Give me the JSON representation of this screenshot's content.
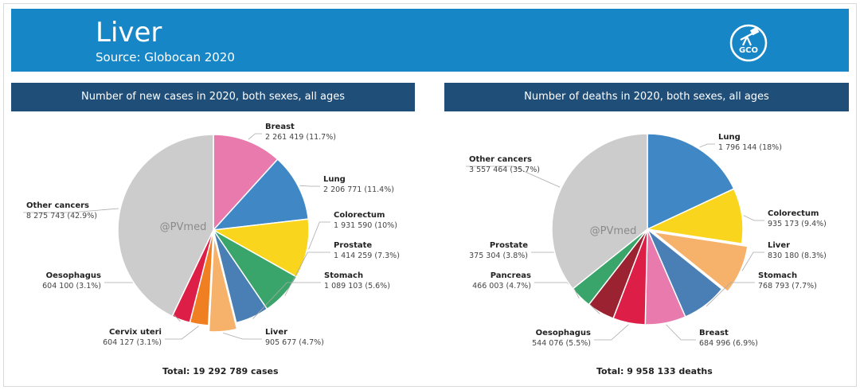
{
  "header": {
    "title": "Liver",
    "subtitle": "Source: Globocan 2020",
    "logo_text": "GCO",
    "logo_icon": "telescope-icon",
    "background_color": "#1686c6"
  },
  "watermark": "@PVmed",
  "chart_data": [
    {
      "type": "pie",
      "title": "Number of new cases in 2020, both sexes, all ages",
      "total_label": "Total: 19 292 789 cases",
      "highlight": "Liver",
      "slices": [
        {
          "label": "Breast",
          "value_text": "2 261 419 (11.7%)",
          "value": 2261419,
          "percent": 11.7,
          "color": "#e97aad"
        },
        {
          "label": "Lung",
          "value_text": "2 206 771 (11.4%)",
          "value": 2206771,
          "percent": 11.4,
          "color": "#3f88c5"
        },
        {
          "label": "Colorectum",
          "value_text": "1 931 590 (10%)",
          "value": 1931590,
          "percent": 10.0,
          "color": "#f9d61d"
        },
        {
          "label": "Prostate",
          "value_text": "1 414 259 (7.3%)",
          "value": 1414259,
          "percent": 7.3,
          "color": "#3aa56a"
        },
        {
          "label": "Stomach",
          "value_text": "1 089 103 (5.6%)",
          "value": 1089103,
          "percent": 5.6,
          "color": "#4a7fb5"
        },
        {
          "label": "Liver",
          "value_text": "905 677 (4.7%)",
          "value": 905677,
          "percent": 4.7,
          "color": "#f6b26b"
        },
        {
          "label": "Cervix uteri",
          "value_text": "604 127 (3.1%)",
          "value": 604127,
          "percent": 3.1,
          "color": "#f07f22"
        },
        {
          "label": "Oesophagus",
          "value_text": "604 100 (3.1%)",
          "value": 604100,
          "percent": 3.1,
          "color": "#dd1f47"
        },
        {
          "label": "Other cancers",
          "value_text": "8 275 743 (42.9%)",
          "value": 8275743,
          "percent": 42.9,
          "color": "#cccccc"
        }
      ]
    },
    {
      "type": "pie",
      "title": "Number of deaths in 2020, both sexes, all ages",
      "total_label": "Total: 9 958 133 deaths",
      "highlight": "Liver",
      "slices": [
        {
          "label": "Lung",
          "value_text": "1 796 144 (18%)",
          "value": 1796144,
          "percent": 18.0,
          "color": "#3f88c5"
        },
        {
          "label": "Colorectum",
          "value_text": "935 173 (9.4%)",
          "value": 935173,
          "percent": 9.4,
          "color": "#f9d61d"
        },
        {
          "label": "Liver",
          "value_text": "830 180 (8.3%)",
          "value": 830180,
          "percent": 8.3,
          "color": "#f6b26b"
        },
        {
          "label": "Stomach",
          "value_text": "768 793 (7.7%)",
          "value": 768793,
          "percent": 7.7,
          "color": "#4a7fb5"
        },
        {
          "label": "Breast",
          "value_text": "684 996 (6.9%)",
          "value": 684996,
          "percent": 6.9,
          "color": "#e97aad"
        },
        {
          "label": "Oesophagus",
          "value_text": "544 076 (5.5%)",
          "value": 544076,
          "percent": 5.5,
          "color": "#dd1f47"
        },
        {
          "label": "Pancreas",
          "value_text": "466 003 (4.7%)",
          "value": 466003,
          "percent": 4.7,
          "color": "#9b2230"
        },
        {
          "label": "Prostate",
          "value_text": "375 304 (3.8%)",
          "value": 375304,
          "percent": 3.8,
          "color": "#3aa56a"
        },
        {
          "label": "Other cancers",
          "value_text": "3 557 464 (35.7%)",
          "value": 3557464,
          "percent": 35.7,
          "color": "#cccccc"
        }
      ]
    }
  ]
}
